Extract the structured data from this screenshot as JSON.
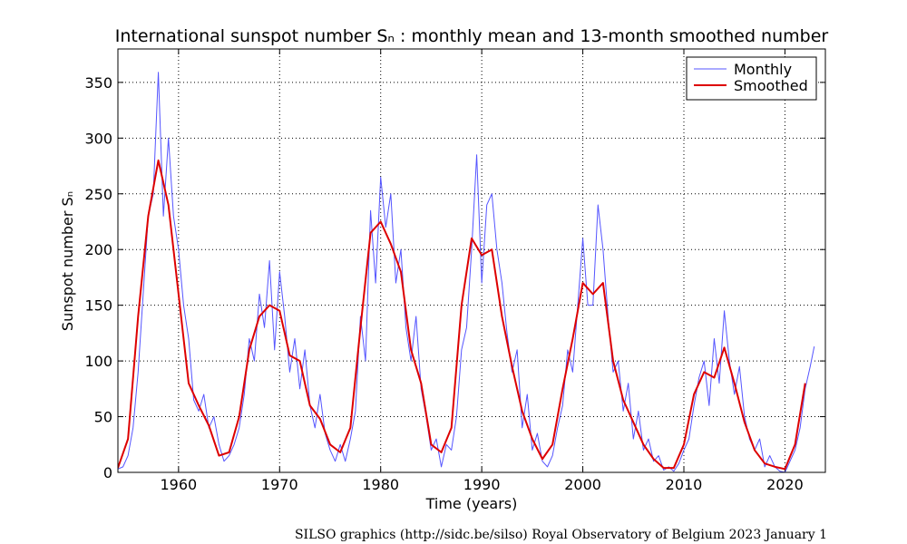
{
  "chart_data": {
    "type": "line",
    "title": "International sunspot number Sₙ : monthly mean and 13-month smoothed number",
    "x_label": "Time (years)",
    "y_label": "Sunspot number Sₙ",
    "footer": "SILSO graphics (http://sidc.be/silso)  Royal Observatory of Belgium  2023 January 1",
    "xlim": [
      1954,
      2024
    ],
    "xticks": [
      1960,
      1970,
      1980,
      1990,
      2000,
      2010,
      2020
    ],
    "ylim": [
      0,
      380
    ],
    "yticks": [
      0,
      50,
      100,
      150,
      200,
      250,
      300,
      350
    ],
    "grid": true,
    "legend": "upper right",
    "series": [
      {
        "name": "Monthly",
        "color": "#5555ff",
        "width": 1,
        "x": [
          1954.0,
          1954.5,
          1955.0,
          1955.5,
          1956.0,
          1956.5,
          1957.0,
          1957.5,
          1958.0,
          1958.5,
          1959.0,
          1959.5,
          1960.0,
          1960.5,
          1961.0,
          1961.5,
          1962.0,
          1962.5,
          1963.0,
          1963.5,
          1964.0,
          1964.5,
          1965.0,
          1965.5,
          1966.0,
          1966.5,
          1967.0,
          1967.5,
          1968.0,
          1968.5,
          1969.0,
          1969.5,
          1970.0,
          1970.5,
          1971.0,
          1971.5,
          1972.0,
          1972.5,
          1973.0,
          1973.5,
          1974.0,
          1974.5,
          1975.0,
          1975.5,
          1976.0,
          1976.5,
          1977.0,
          1977.5,
          1978.0,
          1978.5,
          1979.0,
          1979.5,
          1980.0,
          1980.5,
          1981.0,
          1981.5,
          1982.0,
          1982.5,
          1983.0,
          1983.5,
          1984.0,
          1984.5,
          1985.0,
          1985.5,
          1986.0,
          1986.5,
          1987.0,
          1987.5,
          1988.0,
          1988.5,
          1989.0,
          1989.5,
          1990.0,
          1990.5,
          1991.0,
          1991.5,
          1992.0,
          1992.5,
          1993.0,
          1993.5,
          1994.0,
          1994.5,
          1995.0,
          1995.5,
          1996.0,
          1996.5,
          1997.0,
          1997.5,
          1998.0,
          1998.5,
          1999.0,
          1999.5,
          2000.0,
          2000.5,
          2001.0,
          2001.5,
          2002.0,
          2002.5,
          2003.0,
          2003.5,
          2004.0,
          2004.5,
          2005.0,
          2005.5,
          2006.0,
          2006.5,
          2007.0,
          2007.5,
          2008.0,
          2008.5,
          2009.0,
          2009.5,
          2010.0,
          2010.5,
          2011.0,
          2011.5,
          2012.0,
          2012.5,
          2013.0,
          2013.5,
          2014.0,
          2014.5,
          2015.0,
          2015.5,
          2016.0,
          2016.5,
          2017.0,
          2017.5,
          2018.0,
          2018.5,
          2019.0,
          2019.5,
          2020.0,
          2020.5,
          2021.0,
          2021.5,
          2022.0,
          2022.5,
          2022.9
        ],
        "values": [
          3,
          5,
          15,
          40,
          90,
          160,
          230,
          250,
          359,
          230,
          300,
          230,
          200,
          150,
          120,
          65,
          55,
          70,
          40,
          50,
          25,
          10,
          15,
          25,
          40,
          70,
          120,
          100,
          160,
          130,
          190,
          110,
          180,
          140,
          90,
          120,
          75,
          110,
          60,
          40,
          70,
          35,
          20,
          10,
          25,
          10,
          30,
          55,
          140,
          100,
          235,
          170,
          265,
          220,
          250,
          170,
          200,
          130,
          100,
          140,
          75,
          50,
          20,
          30,
          5,
          25,
          20,
          50,
          110,
          130,
          200,
          285,
          170,
          240,
          250,
          200,
          170,
          125,
          90,
          110,
          40,
          70,
          20,
          35,
          10,
          5,
          15,
          40,
          60,
          110,
          90,
          150,
          210,
          150,
          150,
          240,
          200,
          140,
          90,
          100,
          55,
          80,
          30,
          55,
          20,
          30,
          10,
          15,
          2,
          5,
          1,
          8,
          20,
          30,
          60,
          85,
          100,
          60,
          120,
          80,
          145,
          100,
          70,
          95,
          50,
          30,
          20,
          30,
          5,
          15,
          5,
          1,
          0,
          10,
          20,
          40,
          75,
          95,
          113
        ]
      },
      {
        "name": "Smoothed",
        "color": "#dd0000",
        "width": 2,
        "x": [
          1954,
          1955,
          1956,
          1957,
          1958,
          1959,
          1960,
          1961,
          1962,
          1963,
          1964,
          1965,
          1966,
          1967,
          1968,
          1969,
          1970,
          1971,
          1972,
          1973,
          1974,
          1975,
          1976,
          1977,
          1978,
          1979,
          1980,
          1981,
          1982,
          1983,
          1984,
          1985,
          1986,
          1987,
          1988,
          1989,
          1990,
          1991,
          1992,
          1993,
          1994,
          1995,
          1996,
          1997,
          1998,
          1999,
          2000,
          2001,
          2002,
          2003,
          2004,
          2005,
          2006,
          2007,
          2008,
          2009,
          2010,
          2011,
          2012,
          2013,
          2014,
          2015,
          2016,
          2017,
          2018,
          2019,
          2020,
          2021,
          2022
        ],
        "values": [
          4,
          30,
          140,
          230,
          280,
          240,
          160,
          80,
          60,
          42,
          15,
          18,
          50,
          110,
          140,
          150,
          145,
          105,
          100,
          60,
          48,
          25,
          18,
          40,
          130,
          215,
          225,
          205,
          180,
          110,
          80,
          25,
          18,
          40,
          150,
          210,
          195,
          200,
          140,
          95,
          55,
          30,
          12,
          25,
          75,
          120,
          170,
          160,
          170,
          100,
          65,
          45,
          25,
          12,
          4,
          4,
          25,
          70,
          90,
          85,
          112,
          80,
          45,
          20,
          8,
          5,
          3,
          25,
          80
        ]
      }
    ]
  }
}
